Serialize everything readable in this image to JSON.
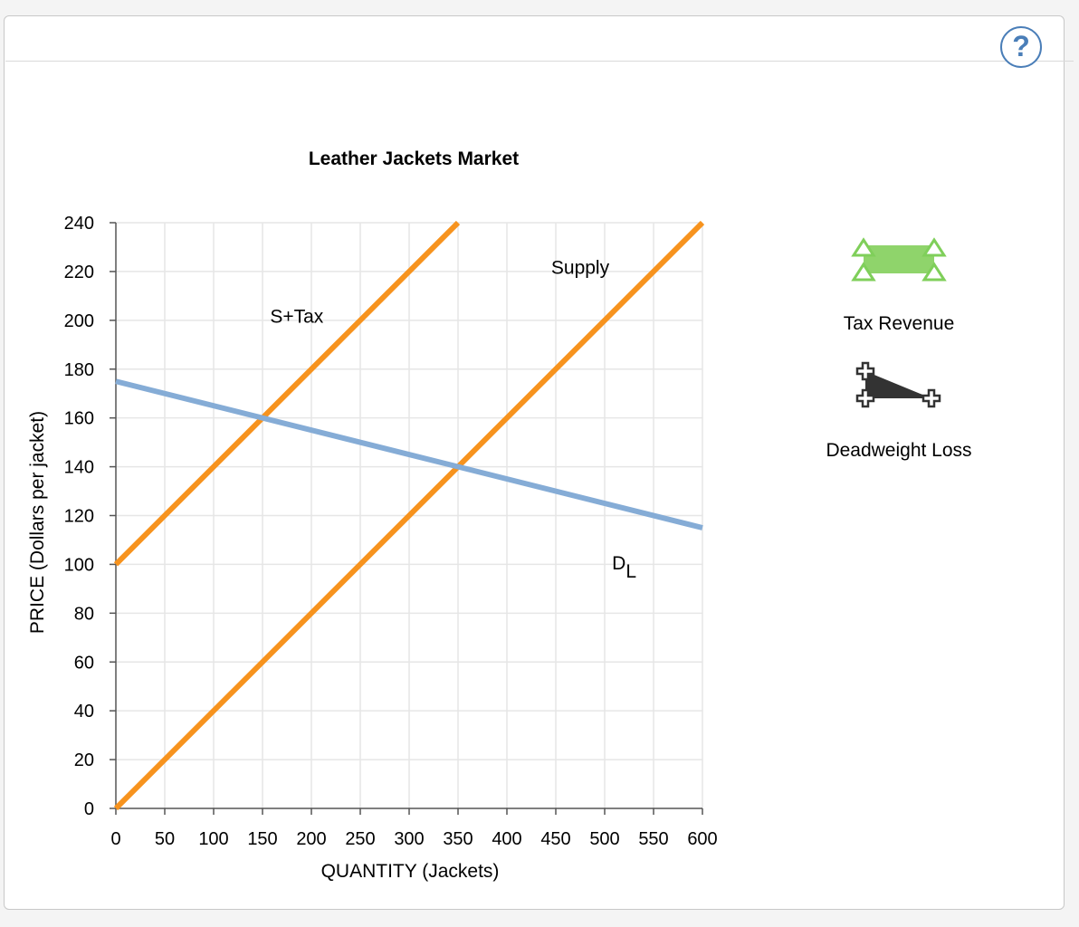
{
  "help": {
    "label": "?"
  },
  "palette": {
    "tax_revenue_label": "Tax Revenue",
    "deadweight_loss_label": "Deadweight Loss",
    "tax_revenue_color": "#8fd46b",
    "tax_revenue_outline": "#7fcf5a",
    "deadweight_loss_color": "#333333"
  },
  "chart_data": {
    "type": "line",
    "title": "Leather Jackets Market",
    "xlabel": "QUANTITY (Jackets)",
    "ylabel": "PRICE (Dollars per jacket)",
    "xlim": [
      0,
      600
    ],
    "ylim": [
      0,
      240
    ],
    "xticks": [
      0,
      50,
      100,
      150,
      200,
      250,
      300,
      350,
      400,
      450,
      500,
      550,
      600
    ],
    "yticks": [
      0,
      20,
      40,
      60,
      80,
      100,
      120,
      140,
      160,
      180,
      200,
      220,
      240
    ],
    "grid": true,
    "series": [
      {
        "name": "S+Tax",
        "color": "#f7931e",
        "x": [
          0,
          350
        ],
        "y": [
          100,
          240
        ]
      },
      {
        "name": "Supply",
        "color": "#f7931e",
        "x": [
          0,
          600
        ],
        "y": [
          0,
          240
        ]
      },
      {
        "name": "D",
        "subscript": "L",
        "color": "#85acd6",
        "x": [
          0,
          600
        ],
        "y": [
          175,
          115
        ]
      }
    ],
    "annotations": [
      {
        "series": "S+Tax",
        "x": 185,
        "y": 199
      },
      {
        "series": "Supply",
        "x": 475,
        "y": 219
      },
      {
        "series": "D",
        "x": 520,
        "y": 98
      }
    ]
  }
}
